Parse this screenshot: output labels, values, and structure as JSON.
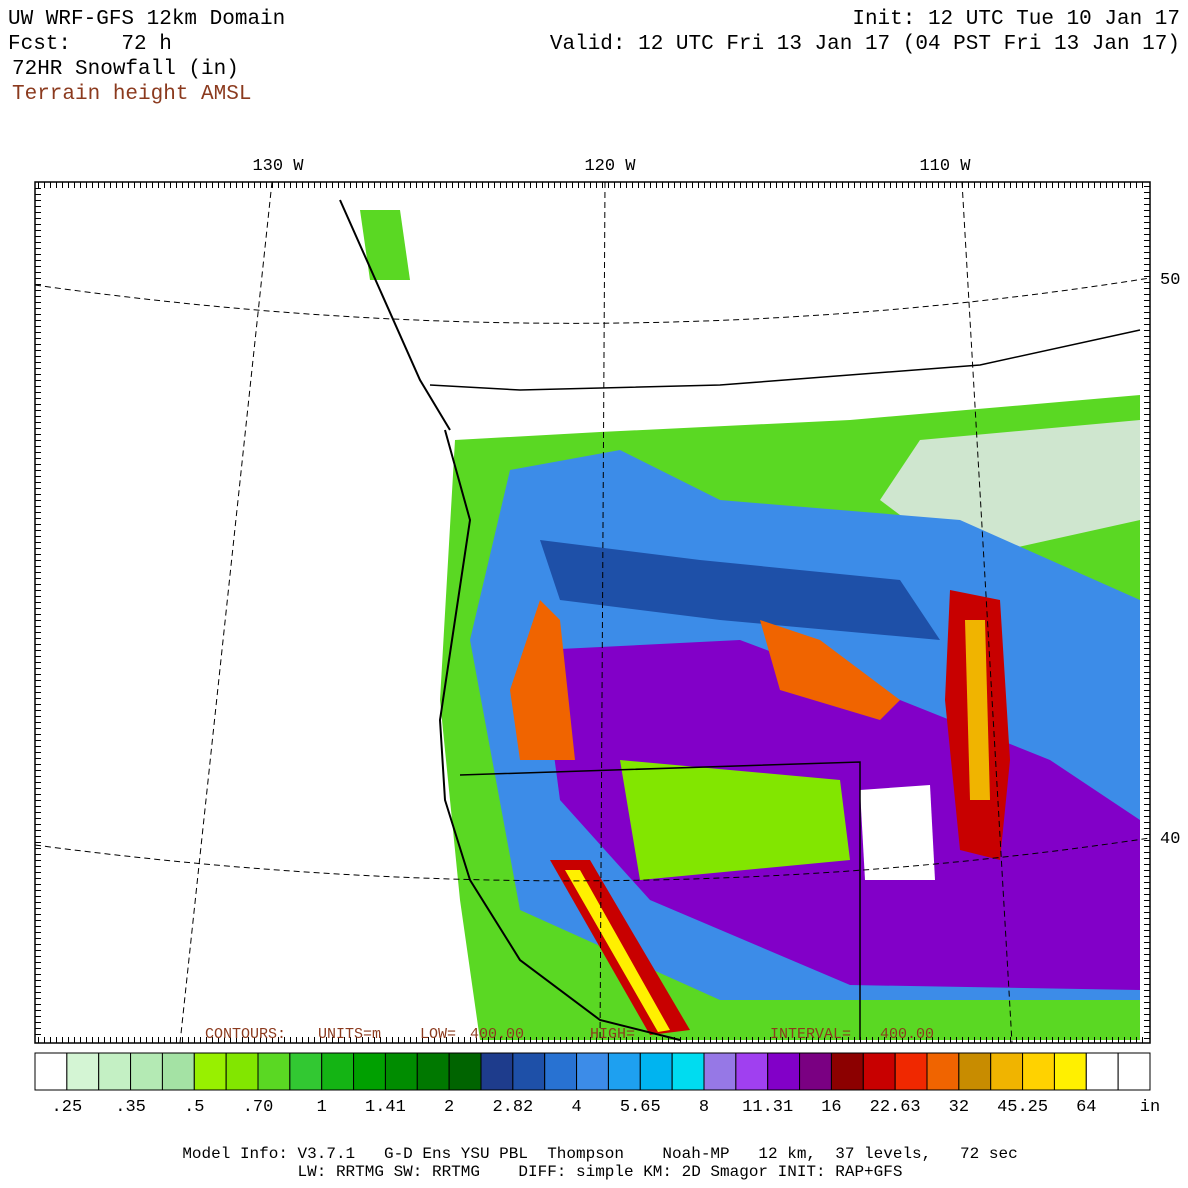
{
  "header": {
    "title": "UW WRF-GFS 12km Domain",
    "forecast": "Fcst:    72 h",
    "field": "72HR Snowfall (in)",
    "overlay": "Terrain height AMSL",
    "init": "Init: 12 UTC Tue 10 Jan 17",
    "valid": "Valid: 12 UTC Fri 13 Jan 17 (04 PST Fri 13 Jan 17)"
  },
  "map": {
    "lon_labels": [
      "130 W",
      "120 W",
      "110 W"
    ],
    "lat_labels": [
      "50",
      "40"
    ],
    "contour_note": [
      "CONTOURS:",
      "UNITS=m",
      "LOW=",
      "400.00",
      "HIGH=",
      "INTERVAL=",
      "400.00"
    ]
  },
  "colorbar": {
    "labels": [
      ".25",
      ".35",
      ".5",
      ".70",
      "1",
      "1.41",
      "2",
      "2.82",
      "4",
      "5.65",
      "8",
      "11.31",
      "16",
      "22.63",
      "32",
      "45.25",
      "64",
      "in"
    ],
    "colors": [
      "#ffffff",
      "#d4f5d4",
      "#c4f0c4",
      "#b4eab4",
      "#a4e2a4",
      "#98f000",
      "#82e600",
      "#5ad823",
      "#32c832",
      "#14b414",
      "#00a000",
      "#008c00",
      "#007800",
      "#006400",
      "#1e3c8c",
      "#1e50a8",
      "#2872d2",
      "#3c8ce8",
      "#1ea0f0",
      "#00b4f0",
      "#00dcf0",
      "#9678e6",
      "#a040f0",
      "#8200c8",
      "#7a0082",
      "#8c0000",
      "#c80000",
      "#f02800",
      "#f06400",
      "#c88c00",
      "#f0b400",
      "#ffd200",
      "#fff000",
      "#ffffff",
      "#ffffff"
    ]
  },
  "footer": {
    "line1": "Model Info: V3.7.1   G-D Ens YSU PBL  Thompson    Noah-MP   12 km,  37 levels,   72 sec",
    "line2": "LW: RRTMG SW: RRTMG    DIFF: simple KM: 2D Smagor INIT: RAP+GFS"
  }
}
